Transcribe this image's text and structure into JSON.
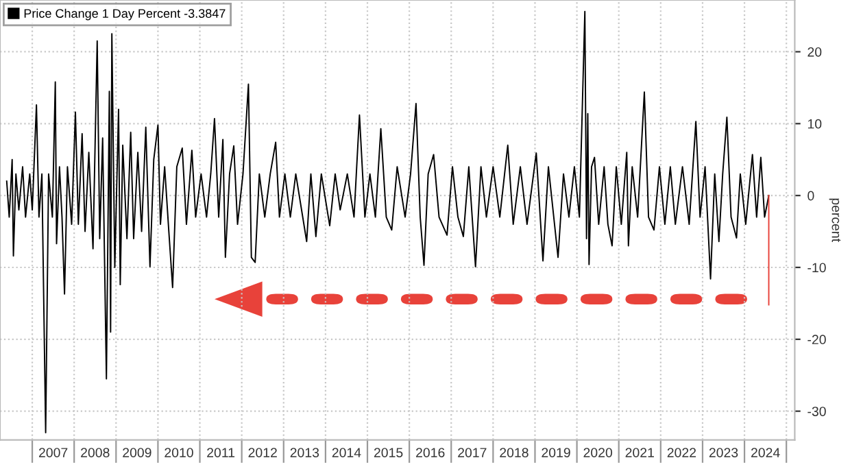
{
  "chart_data": {
    "type": "line",
    "ylabel": "percent",
    "series": [
      {
        "name": "Price Change 1 Day Percent -3.3847",
        "color": "#000000",
        "x": [
          2006.39,
          2006.45,
          2006.52,
          2006.55,
          2006.61,
          2006.68,
          2006.77,
          2006.84,
          2006.94,
          2007.0,
          2007.1,
          2007.16,
          2007.23,
          2007.32,
          2007.39,
          2007.48,
          2007.55,
          2007.58,
          2007.65,
          2007.71,
          2007.77,
          2007.84,
          2007.94,
          2008.03,
          2008.1,
          2008.19,
          2008.26,
          2008.35,
          2008.45,
          2008.55,
          2008.61,
          2008.68,
          2008.77,
          2008.84,
          2008.87,
          2008.9,
          2008.97,
          2009.06,
          2009.1,
          2009.16,
          2009.26,
          2009.35,
          2009.42,
          2009.52,
          2009.61,
          2009.71,
          2009.81,
          2009.9,
          2010.0,
          2010.06,
          2010.16,
          2010.26,
          2010.35,
          2010.45,
          2010.58,
          2010.68,
          2010.81,
          2010.9,
          2011.03,
          2011.16,
          2011.26,
          2011.35,
          2011.45,
          2011.55,
          2011.61,
          2011.71,
          2011.81,
          2011.9,
          2012.03,
          2012.16,
          2012.23,
          2012.32,
          2012.42,
          2012.55,
          2012.68,
          2012.81,
          2012.9,
          2013.03,
          2013.16,
          2013.29,
          2013.55,
          2013.65,
          2013.77,
          2013.9,
          2014.1,
          2014.23,
          2014.35,
          2014.52,
          2014.68,
          2014.81,
          2014.94,
          2015.06,
          2015.19,
          2015.32,
          2015.45,
          2015.58,
          2015.71,
          2015.9,
          2016.03,
          2016.16,
          2016.26,
          2016.35,
          2016.45,
          2016.58,
          2016.71,
          2016.9,
          2017.03,
          2017.16,
          2017.29,
          2017.42,
          2017.58,
          2017.71,
          2017.84,
          2018.0,
          2018.16,
          2018.35,
          2018.48,
          2018.65,
          2018.81,
          2019.03,
          2019.19,
          2019.32,
          2019.55,
          2019.68,
          2019.81,
          2019.94,
          2020.06,
          2020.19,
          2020.23,
          2020.26,
          2020.29,
          2020.35,
          2020.42,
          2020.52,
          2020.65,
          2020.74,
          2020.84,
          2020.94,
          2021.06,
          2021.19,
          2021.23,
          2021.32,
          2021.45,
          2021.61,
          2021.71,
          2021.84,
          2021.97,
          2022.1,
          2022.23,
          2022.35,
          2022.52,
          2022.68,
          2022.84,
          2022.94,
          2023.06,
          2023.19,
          2023.29,
          2023.39,
          2023.48,
          2023.58,
          2023.68,
          2023.81,
          2023.9,
          2024.03,
          2024.19,
          2024.29,
          2024.39,
          2024.48,
          2024.58
        ],
        "values": [
          2,
          -3,
          5,
          -8.4,
          3,
          -2,
          4,
          -3,
          3,
          -2,
          12.6,
          -3,
          3,
          -33,
          3,
          -3,
          15.8,
          -6.7,
          4,
          -3,
          -13.7,
          4,
          -4,
          11.6,
          -4,
          8.6,
          -5,
          6,
          -7.4,
          21.5,
          -6,
          8,
          -25.5,
          14.5,
          -19,
          22.5,
          -10,
          12,
          -12.4,
          7,
          -6,
          8.8,
          -6,
          6,
          -5,
          9.5,
          -9.9,
          5,
          9.8,
          -4,
          4,
          -5,
          -12.8,
          4,
          6.6,
          -4,
          6.3,
          -3,
          3,
          -3,
          3,
          10.7,
          -3,
          7.8,
          -8.6,
          3,
          6.9,
          -4,
          3,
          15.5,
          -8.6,
          -9.3,
          3,
          -3,
          3,
          7.4,
          -3,
          3,
          -3,
          3,
          -6.4,
          3,
          -5.7,
          3,
          -4.2,
          3,
          -2,
          3,
          -3,
          11.2,
          -3,
          3,
          -3,
          9.3,
          -3,
          -4.8,
          4,
          -3,
          3,
          12.8,
          -3,
          -9.7,
          3,
          5.7,
          -3,
          -5.5,
          4,
          -3,
          -5.7,
          4,
          -9.9,
          4,
          -3,
          4,
          -3,
          7,
          -4,
          4,
          -4,
          5.9,
          -9.1,
          4,
          -8.6,
          3,
          -3,
          4,
          -3,
          25.6,
          -6,
          11.4,
          -9.6,
          4,
          5.3,
          -4,
          4,
          -4,
          -7,
          4,
          -4,
          6,
          -7,
          4,
          -3,
          14.4,
          -3,
          -4.8,
          4,
          -4,
          4,
          -4,
          4,
          -4,
          10.3,
          -3,
          4,
          -11.6,
          3,
          -6.4,
          3,
          10.9,
          -3,
          -5.9,
          3,
          -4,
          5.7,
          -3,
          5.3,
          -3,
          0
        ]
      },
      {
        "color": "#e8423a",
        "x": [
          2024.58,
          2024.58
        ],
        "values": [
          0,
          -15.2
        ]
      }
    ],
    "xlim": [
      2006.23,
      2025.2
    ],
    "xticks": [
      {
        "value": 2007,
        "label": null
      },
      {
        "value": 2007.5,
        "label": "2007"
      },
      {
        "value": 2008,
        "label": null
      },
      {
        "value": 2008.5,
        "label": "2008"
      },
      {
        "value": 2009,
        "label": null
      },
      {
        "value": 2009.5,
        "label": "2009"
      },
      {
        "value": 2010,
        "label": null
      },
      {
        "value": 2010.5,
        "label": "2010"
      },
      {
        "value": 2011,
        "label": null
      },
      {
        "value": 2011.5,
        "label": "2011"
      },
      {
        "value": 2012,
        "label": null
      },
      {
        "value": 2012.5,
        "label": "2012"
      },
      {
        "value": 2013,
        "label": null
      },
      {
        "value": 2013.5,
        "label": "2013"
      },
      {
        "value": 2014,
        "label": null
      },
      {
        "value": 2014.5,
        "label": "2014"
      },
      {
        "value": 2015,
        "label": null
      },
      {
        "value": 2015.5,
        "label": "2015"
      },
      {
        "value": 2016,
        "label": null
      },
      {
        "value": 2016.5,
        "label": "2016"
      },
      {
        "value": 2017,
        "label": null
      },
      {
        "value": 2017.5,
        "label": "2017"
      },
      {
        "value": 2018,
        "label": null
      },
      {
        "value": 2018.5,
        "label": "2018"
      },
      {
        "value": 2019,
        "label": null
      },
      {
        "value": 2019.5,
        "label": "2019"
      },
      {
        "value": 2020,
        "label": null
      },
      {
        "value": 2020.5,
        "label": "2020"
      },
      {
        "value": 2021,
        "label": null
      },
      {
        "value": 2021.5,
        "label": "2021"
      },
      {
        "value": 2022,
        "label": null
      },
      {
        "value": 2022.5,
        "label": "2022"
      },
      {
        "value": 2023,
        "label": null
      },
      {
        "value": 2023.5,
        "label": "2023"
      },
      {
        "value": 2024,
        "label": null
      },
      {
        "value": 2024.5,
        "label": "2024"
      },
      {
        "value": 2025,
        "label": null
      }
    ],
    "ylim": [
      -34,
      27.2
    ],
    "yticks": [
      -30,
      -20,
      -10,
      0,
      10,
      20
    ],
    "grid": true,
    "legend": "top left",
    "marker": "none",
    "line_style": "solid"
  }
}
